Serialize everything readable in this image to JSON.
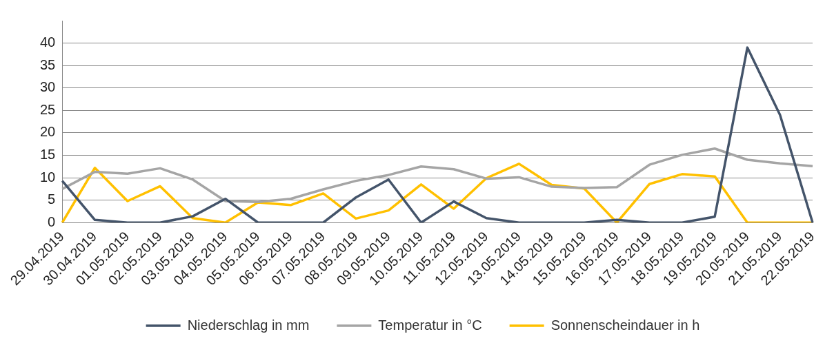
{
  "chart_data": {
    "type": "line",
    "categories": [
      "29.04.2019",
      "30.04.2019",
      "01.05.2019",
      "02.05.2019",
      "03.05.2019",
      "04.05.2019",
      "05.05.2019",
      "06.05.2019",
      "07.05.2019",
      "08.05.2019",
      "09.05.2019",
      "10.05.2019",
      "11.05.2019",
      "12.05.2019",
      "13.05.2019",
      "14.05.2019",
      "15.05.2019",
      "16.05.2019",
      "17.05.2019",
      "18.05.2019",
      "19.05.2019",
      "20.05.2019",
      "21.05.2019",
      "22.05.2019"
    ],
    "series": [
      {
        "name": "Niederschlag in mm",
        "color": "#44546a",
        "values": [
          9.3,
          0.6,
          0,
          0,
          1.4,
          5.3,
          0,
          0,
          0,
          5.6,
          9.6,
          0,
          4.7,
          1.0,
          0,
          0,
          0,
          0.6,
          0,
          0,
          1.3,
          39,
          24,
          0
        ]
      },
      {
        "name": "Temperatur in °C",
        "color": "#a5a5a5",
        "values": [
          7.5,
          11.3,
          10.9,
          12.1,
          9.6,
          4.8,
          4.6,
          5.3,
          7.4,
          9.3,
          10.6,
          12.5,
          11.9,
          9.8,
          10.1,
          8.0,
          7.7,
          7.9,
          12.9,
          15.1,
          16.5,
          14.0,
          13.2,
          12.6
        ]
      },
      {
        "name": "Sonnenscheindauer in h",
        "color": "#ffc000",
        "values": [
          0,
          12.2,
          4.8,
          8.1,
          1.0,
          0,
          4.5,
          3.9,
          6.5,
          0.9,
          2.7,
          8.5,
          3.1,
          9.9,
          13.1,
          8.4,
          7.6,
          0,
          8.6,
          10.8,
          10.3,
          0,
          0,
          0
        ]
      }
    ],
    "ylim": [
      0,
      45
    ],
    "yticks": [
      0,
      5,
      10,
      15,
      20,
      25,
      30,
      35,
      40
    ],
    "grid": "y",
    "legend": "bottom",
    "marker": "none",
    "line_style": "solid"
  }
}
